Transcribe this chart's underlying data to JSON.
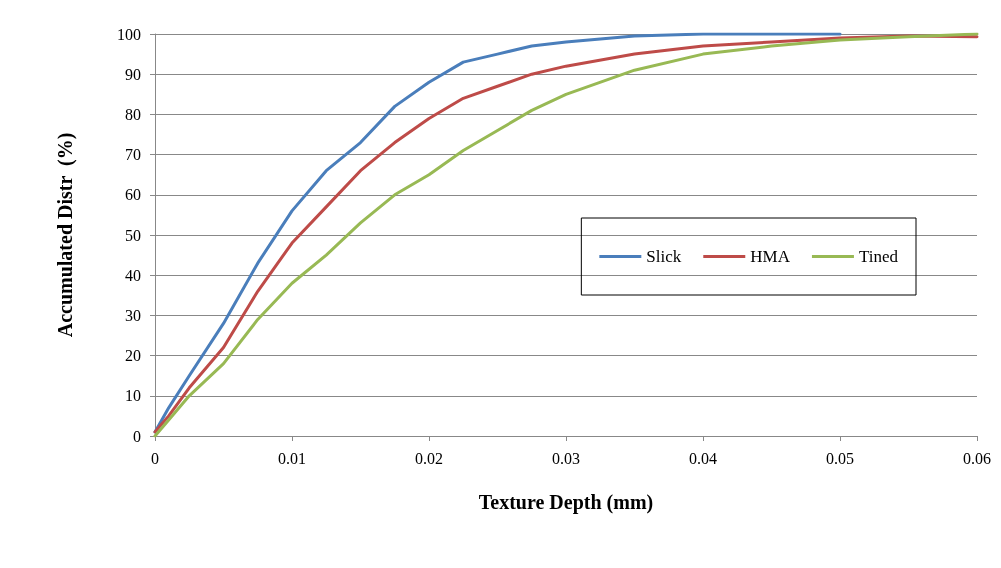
{
  "chart_data": {
    "type": "line",
    "xlabel": "Texture Depth (mm)",
    "ylabel": "Accumulated Distr  (%)",
    "xlim": [
      0,
      0.06
    ],
    "xticks": [
      0,
      0.01,
      0.02,
      0.03,
      0.04,
      0.05,
      0.06
    ],
    "ylim": [
      0,
      100
    ],
    "yticks": [
      0,
      10,
      20,
      30,
      40,
      50,
      60,
      70,
      80,
      90,
      100
    ],
    "grid": "y",
    "legend": "right",
    "marker": "none",
    "line_style": "solid",
    "series": [
      {
        "name": "Slick",
        "color": "#4a7ebb",
        "x": [
          0,
          0.001,
          0.0025,
          0.005,
          0.0075,
          0.01,
          0.0125,
          0.015,
          0.0175,
          0.02,
          0.0225,
          0.025,
          0.0275,
          0.03,
          0.035,
          0.04,
          0.045,
          0.05
        ],
        "values": [
          1,
          7,
          15,
          28,
          43,
          56,
          66,
          73,
          82,
          88,
          93,
          95,
          97,
          98,
          99.5,
          100,
          100,
          100
        ]
      },
      {
        "name": "HMA",
        "color": "#be4b48",
        "x": [
          0,
          0.001,
          0.0025,
          0.005,
          0.0075,
          0.01,
          0.0125,
          0.015,
          0.0175,
          0.02,
          0.0225,
          0.025,
          0.0275,
          0.03,
          0.035,
          0.04,
          0.045,
          0.05,
          0.055,
          0.06
        ],
        "values": [
          1,
          5,
          12,
          22,
          36,
          48,
          57,
          66,
          73,
          79,
          84,
          87,
          90,
          92,
          95,
          97,
          98,
          99,
          99.5,
          99.3
        ]
      },
      {
        "name": "Tined",
        "color": "#98b954",
        "x": [
          0,
          0.001,
          0.0025,
          0.005,
          0.0075,
          0.01,
          0.0125,
          0.015,
          0.0175,
          0.02,
          0.0225,
          0.025,
          0.0275,
          0.03,
          0.035,
          0.04,
          0.045,
          0.05,
          0.055,
          0.06
        ],
        "values": [
          0,
          4,
          10,
          18,
          29,
          38,
          45,
          53,
          60,
          65,
          71,
          76,
          81,
          85,
          91,
          95,
          97,
          98.5,
          99.3,
          100
        ]
      }
    ]
  }
}
